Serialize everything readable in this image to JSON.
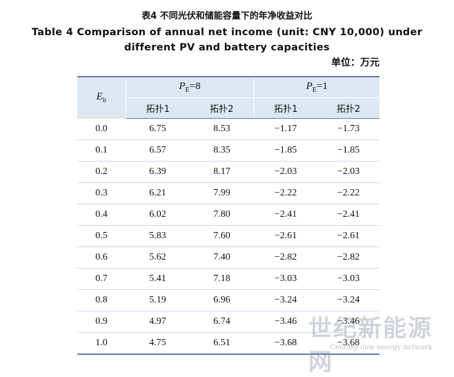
{
  "header": {
    "title_cn": "表4  不同光伏和储能容量下的年净收益对比",
    "title_en": "Table 4  Comparison of annual net income (unit: CNY 10,000) under different PV and battery capacities",
    "unit": "单位：万元"
  },
  "table": {
    "eb": {
      "main": "E",
      "sub": "b"
    },
    "groups": [
      {
        "main": "P",
        "sub": "E",
        "rest": "=8"
      },
      {
        "main": "P",
        "sub": "E",
        "rest": "=1"
      }
    ],
    "subheads": [
      "拓扑1",
      "拓扑2",
      "拓扑1",
      "拓扑2"
    ],
    "rows": [
      [
        "0.0",
        "6.75",
        "8.53",
        "−1.17",
        "−1.73"
      ],
      [
        "0.1",
        "6.57",
        "8.35",
        "−1.85",
        "−1.85"
      ],
      [
        "0.2",
        "6.39",
        "8.17",
        "−2.03",
        "−2.03"
      ],
      [
        "0.3",
        "6.21",
        "7.99",
        "−2.22",
        "−2.22"
      ],
      [
        "0.4",
        "6.02",
        "7.80",
        "−2.41",
        "−2.41"
      ],
      [
        "0.5",
        "5.83",
        "7.60",
        "−2.61",
        "−2.61"
      ],
      [
        "0.6",
        "5.62",
        "7.40",
        "−2.82",
        "−2.82"
      ],
      [
        "0.7",
        "5.41",
        "7.18",
        "−3.03",
        "−3.03"
      ],
      [
        "0.8",
        "5.19",
        "6.96",
        "−3.24",
        "−3.24"
      ],
      [
        "0.9",
        "4.97",
        "6.74",
        "−3.46",
        "−3.46"
      ],
      [
        "1.0",
        "4.75",
        "6.51",
        "−3.68",
        "−3.68"
      ]
    ]
  },
  "watermark": {
    "main": "世纪新能源网",
    "sub": "Century new energy network"
  }
}
